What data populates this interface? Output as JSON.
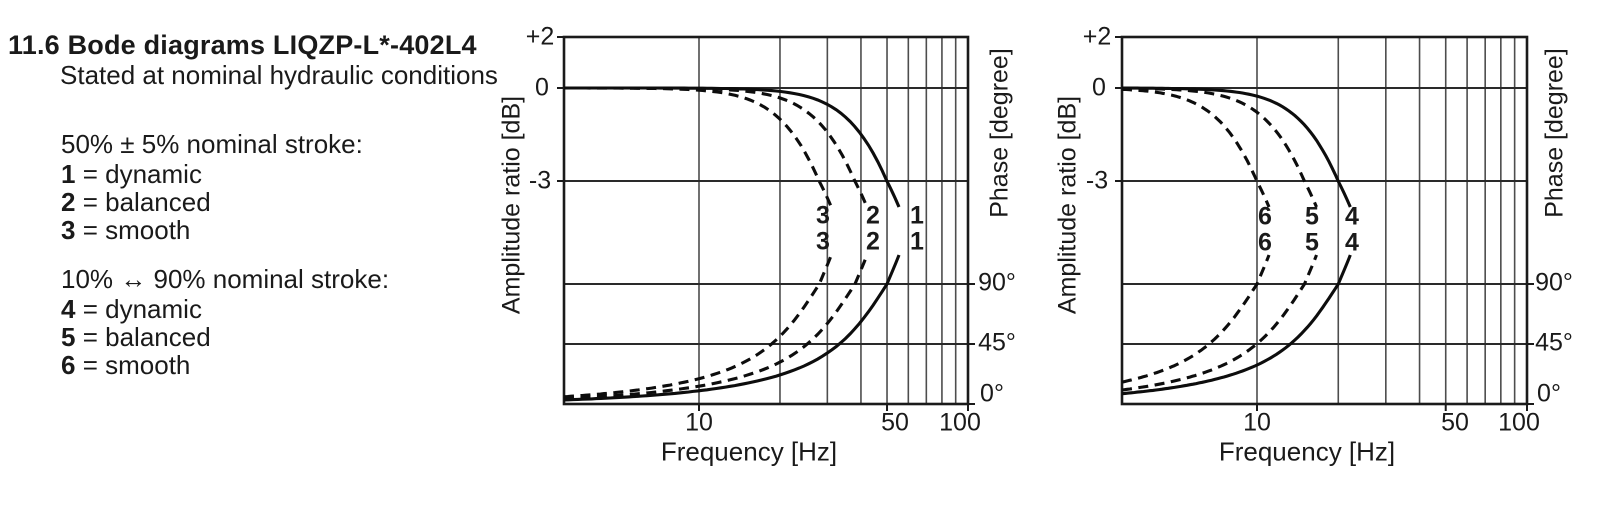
{
  "header": {
    "section": "11.6",
    "title": "Bode diagrams LIQZP-L*-402L4",
    "subtitle": "Stated at nominal hydraulic conditions"
  },
  "legend_50pct": {
    "heading": "50% ± 5% nominal stroke:",
    "items": [
      {
        "num": "1",
        "eq": "=",
        "name": "dynamic"
      },
      {
        "num": "2",
        "eq": "=",
        "name": "balanced"
      },
      {
        "num": "3",
        "eq": "=",
        "name": "smooth"
      }
    ]
  },
  "legend_10_90pct": {
    "heading": "10% ↔ 90% nominal stroke:",
    "items": [
      {
        "num": "4",
        "eq": "=",
        "name": "dynamic"
      },
      {
        "num": "5",
        "eq": "=",
        "name": "balanced"
      },
      {
        "num": "6",
        "eq": "=",
        "name": "smooth"
      }
    ]
  },
  "chart_data": [
    {
      "type": "line",
      "name": "bode-50pct-stroke",
      "x_axis": {
        "label": "Frequency [Hz]",
        "scale": "log",
        "min": 3.2,
        "max": 100,
        "tick_labels": [
          "10",
          "50",
          "100"
        ],
        "gridlines": [
          10,
          20,
          30,
          40,
          50,
          60,
          70,
          80,
          90,
          100
        ]
      },
      "amplitude_axis": {
        "label": "Amplitude ratio [dB]",
        "tick_labels": [
          "+2",
          "0",
          "-3"
        ]
      },
      "phase_axis": {
        "label": "Phase [degree]",
        "tick_labels": [
          "90°",
          "45°",
          "0°"
        ]
      },
      "series": [
        {
          "label": "1",
          "meaning": "dynamic",
          "style": "solid",
          "f_minus3dB_Hz": 50,
          "f_90deg_Hz": 50
        },
        {
          "label": "2",
          "meaning": "balanced",
          "style": "dashed",
          "f_minus3dB_Hz": 38,
          "f_90deg_Hz": 38
        },
        {
          "label": "3",
          "meaning": "smooth",
          "style": "dashed",
          "f_minus3dB_Hz": 28,
          "f_90deg_Hz": 28
        }
      ],
      "curve_label_rows": {
        "amplitude": [
          "3",
          "2",
          "1"
        ],
        "phase": [
          "3",
          "2",
          "1"
        ]
      }
    },
    {
      "type": "line",
      "name": "bode-10-90pct-stroke",
      "x_axis": {
        "label": "Frequency [Hz]",
        "scale": "log",
        "min": 3.2,
        "max": 100,
        "tick_labels": [
          "10",
          "50",
          "100"
        ],
        "gridlines": [
          10,
          20,
          30,
          40,
          50,
          60,
          70,
          80,
          90,
          100
        ]
      },
      "amplitude_axis": {
        "label": "Amplitude ratio [dB]",
        "tick_labels": [
          "+2",
          "0",
          "-3"
        ]
      },
      "phase_axis": {
        "label": "Phase [degree]",
        "tick_labels": [
          "90°",
          "45°",
          "0°"
        ]
      },
      "series": [
        {
          "label": "4",
          "meaning": "dynamic",
          "style": "solid",
          "f_minus3dB_Hz": 20,
          "f_90deg_Hz": 20
        },
        {
          "label": "5",
          "meaning": "balanced",
          "style": "dashed",
          "f_minus3dB_Hz": 15,
          "f_90deg_Hz": 15
        },
        {
          "label": "6",
          "meaning": "smooth",
          "style": "dashed",
          "f_minus3dB_Hz": 10,
          "f_90deg_Hz": 10
        }
      ],
      "curve_label_rows": {
        "amplitude": [
          "6",
          "5",
          "4"
        ],
        "phase": [
          "6",
          "5",
          "4"
        ]
      }
    }
  ],
  "colors": {
    "text": "#1a1a1a",
    "grid": "#4d4d4d",
    "curve": "#0d0d0d",
    "border": "#1a1a1a"
  }
}
